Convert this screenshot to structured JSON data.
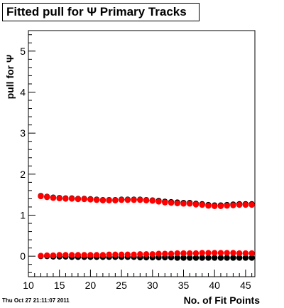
{
  "chart_data": {
    "type": "scatter",
    "title": "Fitted pull for Ψ  Primary Tracks",
    "xlabel": "No. of Fit Points",
    "ylabel": "pull for Ψ",
    "xlim": [
      10,
      46.5
    ],
    "ylim": [
      -0.5,
      5.5
    ],
    "xticks": [
      10,
      15,
      20,
      25,
      30,
      35,
      40,
      45
    ],
    "yticks": [
      0,
      1,
      2,
      3,
      4,
      5
    ],
    "grid": false,
    "legend": "none",
    "x": [
      12,
      13,
      14,
      15,
      16,
      17,
      18,
      19,
      20,
      21,
      22,
      23,
      24,
      25,
      26,
      27,
      28,
      29,
      30,
      31,
      32,
      33,
      34,
      35,
      36,
      37,
      38,
      39,
      40,
      41,
      42,
      43,
      44,
      45,
      46
    ],
    "series": [
      {
        "color": "#000000",
        "values": [
          1.47,
          1.45,
          1.43,
          1.42,
          1.41,
          1.41,
          1.4,
          1.4,
          1.39,
          1.38,
          1.37,
          1.37,
          1.37,
          1.38,
          1.38,
          1.38,
          1.38,
          1.37,
          1.36,
          1.35,
          1.33,
          1.32,
          1.31,
          1.3,
          1.3,
          1.28,
          1.27,
          1.25,
          1.24,
          1.24,
          1.25,
          1.26,
          1.27,
          1.27,
          1.27
        ]
      },
      {
        "color": "#ff0000",
        "values": [
          1.46,
          1.44,
          1.42,
          1.41,
          1.4,
          1.4,
          1.39,
          1.39,
          1.38,
          1.37,
          1.36,
          1.36,
          1.36,
          1.37,
          1.37,
          1.37,
          1.37,
          1.36,
          1.35,
          1.33,
          1.31,
          1.3,
          1.29,
          1.28,
          1.28,
          1.26,
          1.25,
          1.23,
          1.22,
          1.22,
          1.23,
          1.24,
          1.25,
          1.25,
          1.25
        ]
      },
      {
        "color": "#000000",
        "values": [
          0.0,
          0.0,
          -0.01,
          -0.01,
          -0.01,
          -0.02,
          -0.02,
          -0.02,
          -0.02,
          -0.02,
          -0.02,
          -0.02,
          -0.02,
          -0.02,
          -0.02,
          -0.02,
          -0.03,
          -0.03,
          -0.03,
          -0.03,
          -0.03,
          -0.03,
          -0.04,
          -0.04,
          -0.04,
          -0.04,
          -0.04,
          -0.04,
          -0.04,
          -0.04,
          -0.04,
          -0.04,
          -0.04,
          -0.04,
          -0.04
        ]
      },
      {
        "color": "#ff0000",
        "values": [
          0.01,
          0.02,
          0.02,
          0.03,
          0.03,
          0.03,
          0.03,
          0.03,
          0.03,
          0.03,
          0.03,
          0.04,
          0.04,
          0.04,
          0.04,
          0.04,
          0.05,
          0.05,
          0.05,
          0.06,
          0.06,
          0.06,
          0.07,
          0.07,
          0.07,
          0.07,
          0.08,
          0.08,
          0.08,
          0.08,
          0.08,
          0.08,
          0.07,
          0.07,
          0.07
        ]
      }
    ]
  },
  "footer": {
    "datestamp": "Thu Oct 27 21:11:07 2011"
  }
}
